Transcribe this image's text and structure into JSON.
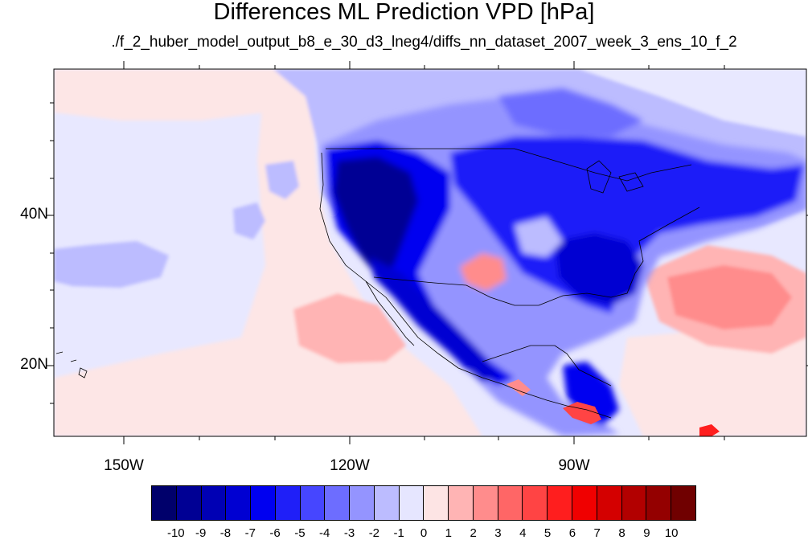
{
  "title": "Differences ML Prediction VPD [hPa]",
  "subtitle": "./f_2_huber_model_output_b8_e_30_d3_lneg4/diffs_nn_dataset_2007_week_3_ens_10_f_2",
  "map": {
    "lon_labels": [
      {
        "text": "150W",
        "lon": -150
      },
      {
        "text": "120W",
        "lon": -120
      },
      {
        "text": "90W",
        "lon": -90
      }
    ],
    "lat_labels": [
      {
        "text": "40N",
        "lat": 40
      },
      {
        "text": "20N",
        "lat": 20
      }
    ],
    "lon_range": [
      -159.3,
      -60.5
    ],
    "lat_range": [
      11,
      59.8
    ]
  },
  "colorbar": {
    "colors": [
      "#00006b",
      "#000094",
      "#0000b4",
      "#0000d2",
      "#0000f0",
      "#1f1ff8",
      "#4646ff",
      "#6d6dff",
      "#9494ff",
      "#bcbcff",
      "#e6e6ff",
      "#fde4e4",
      "#ffb4b4",
      "#ff8c8c",
      "#ff6666",
      "#ff4444",
      "#ff1e1e",
      "#f00000",
      "#d40000",
      "#b20000",
      "#940000",
      "#700000"
    ],
    "labels": [
      "-10",
      "-9",
      "-8",
      "-7",
      "-6",
      "-5",
      "-4",
      "-3",
      "-2",
      "-1",
      "0",
      "1",
      "2",
      "3",
      "4",
      "5",
      "6",
      "7",
      "8",
      "9",
      "10"
    ]
  }
}
